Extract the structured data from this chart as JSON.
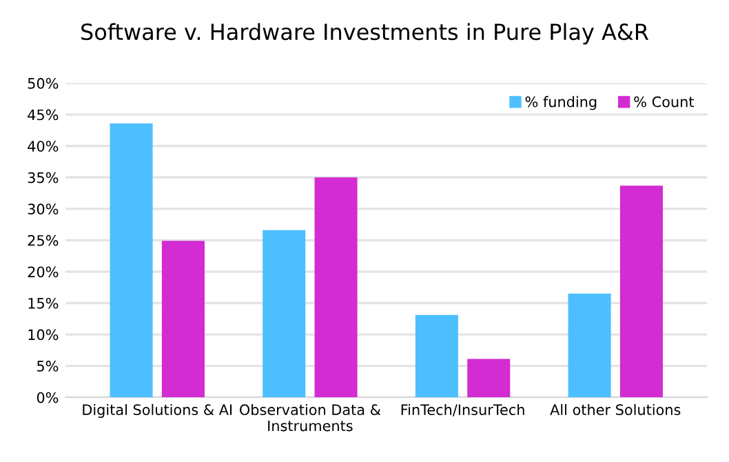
{
  "chart_data": {
    "type": "bar",
    "title": "Software v. Hardware Investments in Pure Play A&R",
    "categories": [
      "Digital Solutions & AI",
      "Observation Data &\nInstruments",
      "FinTech/InsurTech",
      "All other Solutions"
    ],
    "series": [
      {
        "name": "% funding",
        "color": "#4dbfff",
        "values": [
          43.6,
          26.6,
          13.1,
          16.5
        ]
      },
      {
        "name": "% Count",
        "color": "#d22cd2",
        "values": [
          24.9,
          35.0,
          6.1,
          33.7
        ]
      }
    ],
    "ylim": [
      0,
      50
    ],
    "yticks": [
      {
        "value": 0,
        "label": "0%"
      },
      {
        "value": 5,
        "label": "5%"
      },
      {
        "value": 10,
        "label": "10%"
      },
      {
        "value": 15,
        "label": "15%"
      },
      {
        "value": 20,
        "label": "20%"
      },
      {
        "value": 25,
        "label": "25%"
      },
      {
        "value": 30,
        "label": "30%"
      },
      {
        "value": 35,
        "label": "35%"
      },
      {
        "value": 40,
        "label": "40%"
      },
      {
        "value": 45,
        "label": "45%"
      },
      {
        "value": 50,
        "label": "50%"
      }
    ],
    "grid": "y",
    "legend": "top right"
  }
}
